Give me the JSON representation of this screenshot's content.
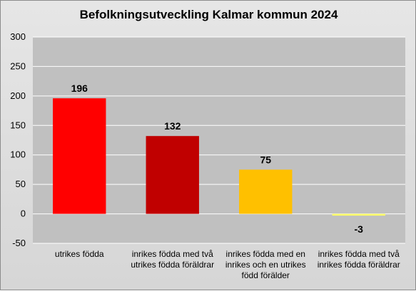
{
  "chart_data": {
    "type": "bar",
    "title": "Befolkningsutveckling Kalmar kommun 2024",
    "categories": [
      "utrikes födda",
      "inrikes födda med två utrikes födda föräldrar",
      "inrikes födda med en inrikes och en utrikes född förälder",
      "inrikes födda med två inrikes födda föräldrar"
    ],
    "values": [
      196,
      132,
      75,
      -3
    ],
    "data_labels": [
      "196",
      "132",
      "75",
      "-3"
    ],
    "bar_colors": [
      "#ff0000",
      "#c00000",
      "#ffc000",
      "#ffff66"
    ],
    "ylim": [
      -50,
      300
    ],
    "yticks": [
      300,
      250,
      200,
      150,
      100,
      50,
      0,
      -50
    ],
    "ytick_labels": [
      "300",
      "250",
      "200",
      "150",
      "100",
      "50",
      "0",
      "-50"
    ],
    "grid": "horizontal",
    "plot_background": "#c0c0c0",
    "xlabel": "",
    "ylabel": ""
  }
}
